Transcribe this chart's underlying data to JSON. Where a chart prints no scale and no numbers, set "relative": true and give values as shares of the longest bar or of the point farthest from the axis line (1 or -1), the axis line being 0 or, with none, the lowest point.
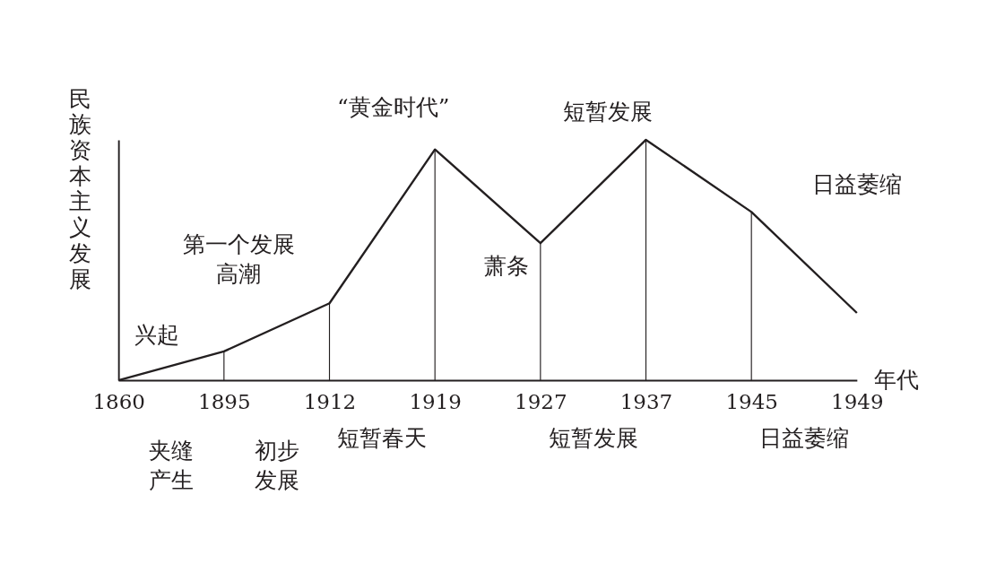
{
  "chart_data": {
    "type": "line",
    "relative": true,
    "categories": [
      "1860",
      "1895",
      "1912",
      "1919",
      "1927",
      "1937",
      "1945",
      "1949"
    ],
    "series": [
      {
        "color": "#231f20",
        "values": [
          0,
          0.12,
          0.32,
          0.96,
          0.57,
          1,
          0.7,
          0.28
        ]
      }
    ],
    "ref_lines": [
      {
        "axis": "x",
        "value": "1895",
        "color": "#231f20"
      },
      {
        "axis": "x",
        "value": "1912",
        "color": "#231f20"
      },
      {
        "axis": "x",
        "value": "1919",
        "color": "#231f20"
      },
      {
        "axis": "x",
        "value": "1927",
        "color": "#231f20"
      },
      {
        "axis": "x",
        "value": "1937",
        "color": "#231f20"
      },
      {
        "axis": "x",
        "value": "1945",
        "color": "#231f20"
      }
    ],
    "xlabel": "年代",
    "ylabel": "民族资本主义发展",
    "annotations": [
      "兴起",
      "第一个发展高潮",
      "“黄金时代”",
      "萧条",
      "短暂发展",
      "日益萎缩",
      "夹缝产生",
      "初步发展",
      "短暂春天",
      "短暂发展",
      "日益萎缩"
    ]
  }
}
